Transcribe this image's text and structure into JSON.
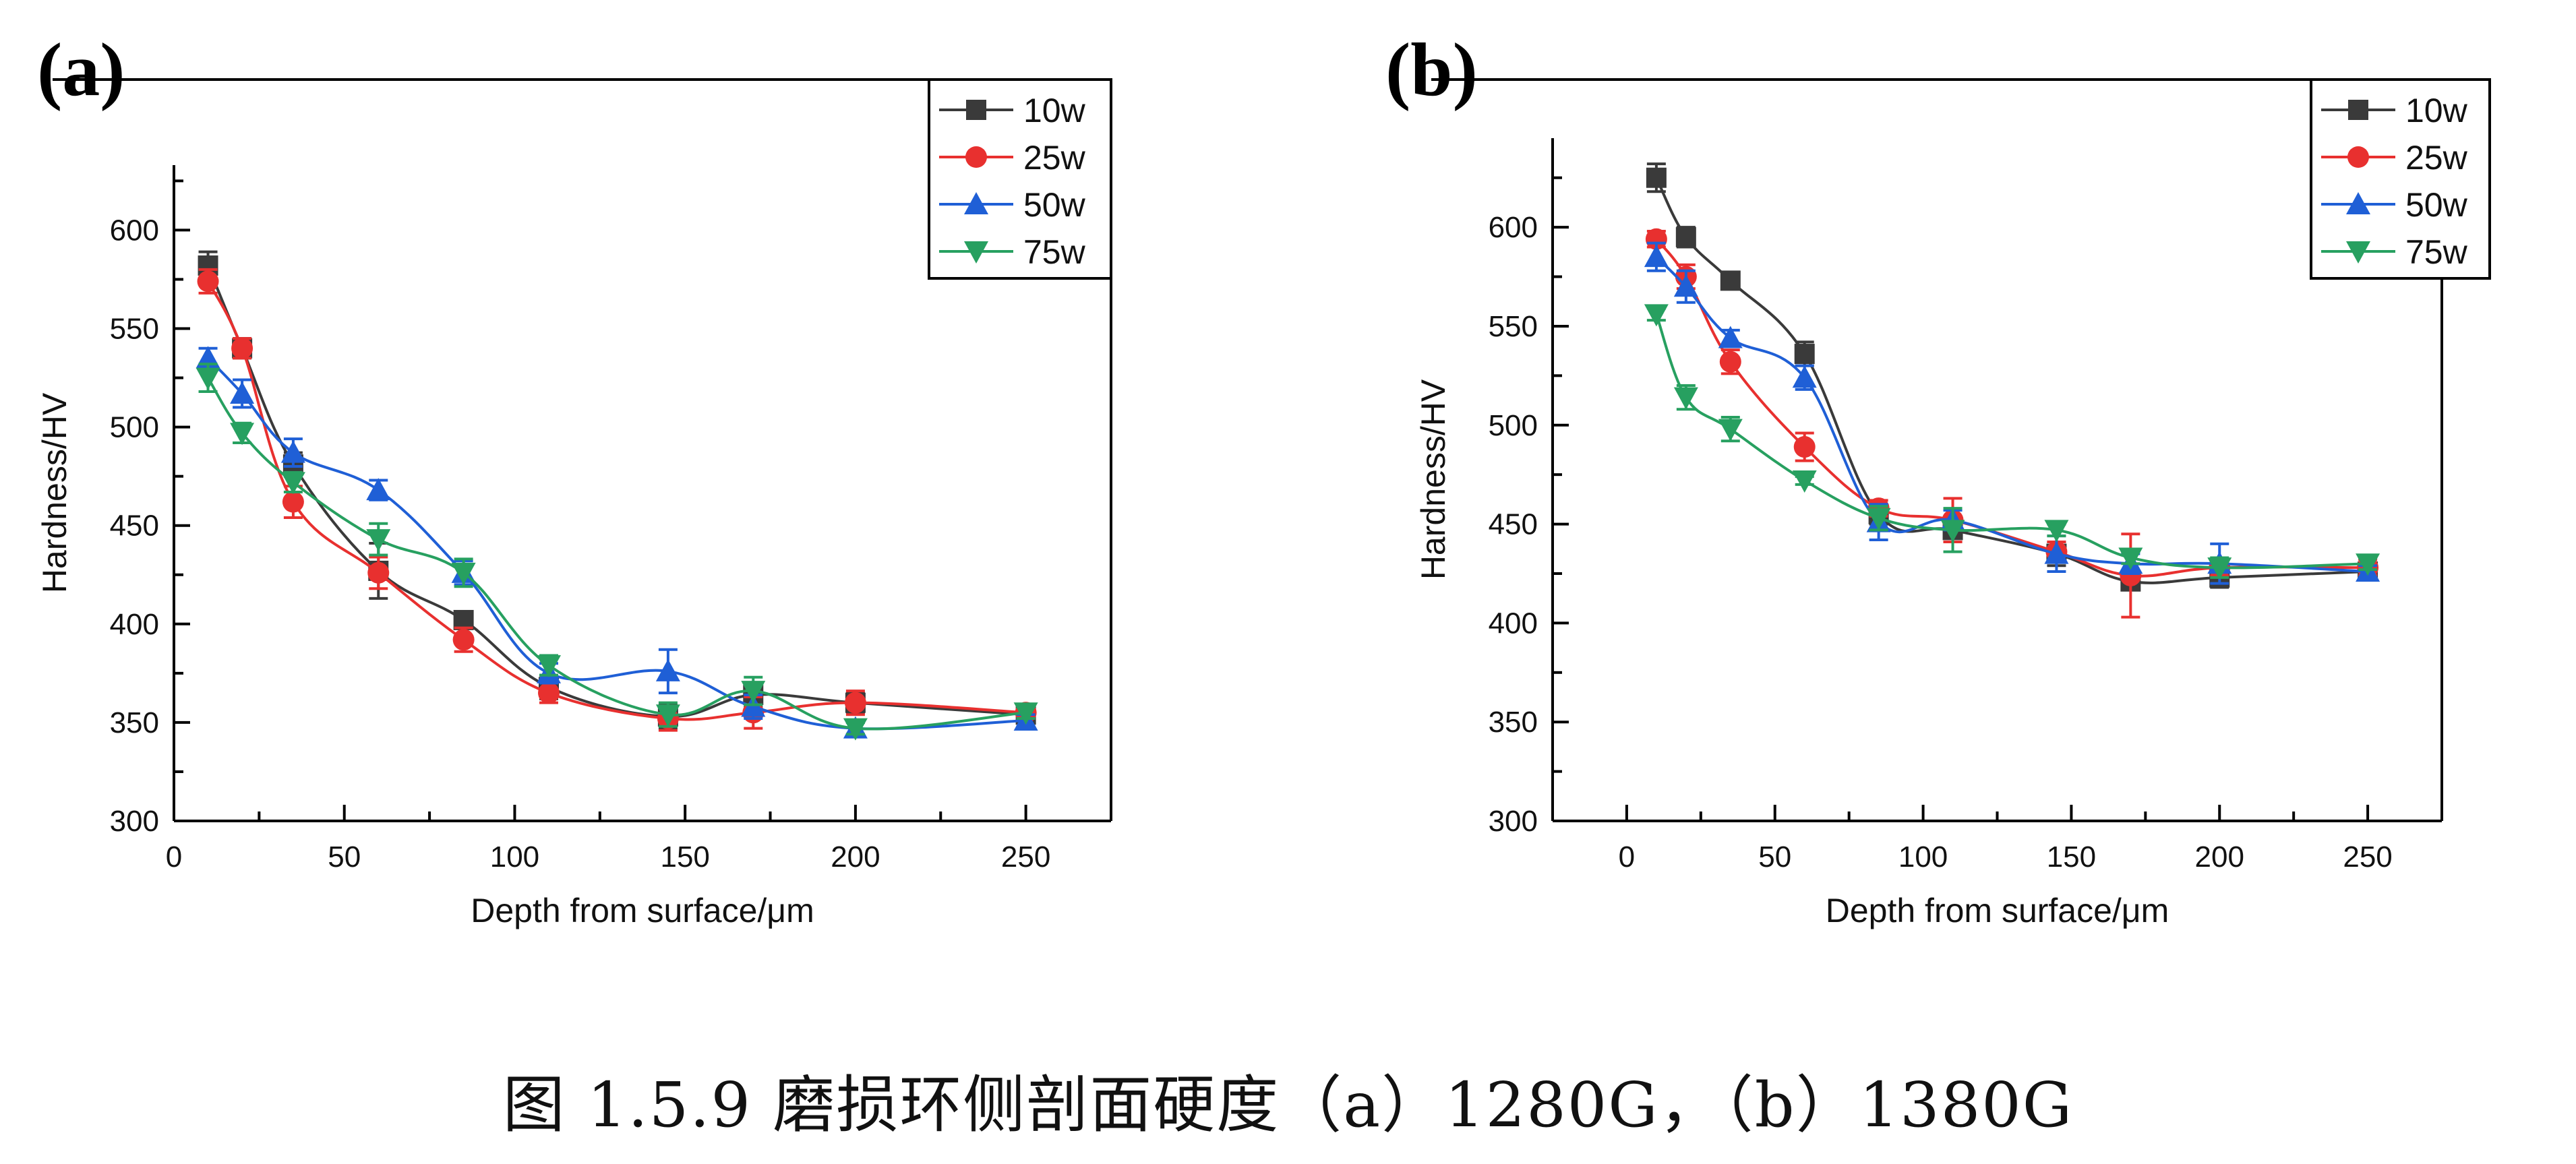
{
  "caption": "图 1.5.9  磨损环侧剖面硬度（a）1280G，（b）1380G",
  "chart_data": [
    {
      "type": "line",
      "panel_label": "(a)",
      "title": "",
      "xlabel": "Depth from surface/μm",
      "ylabel": "Hardness/HV",
      "xlim": [
        0,
        275
      ],
      "ylim": [
        300,
        633
      ],
      "xticks": [
        0,
        50,
        100,
        150,
        200,
        250
      ],
      "yticks": [
        300,
        350,
        400,
        450,
        500,
        550,
        600
      ],
      "grid": false,
      "legend_position": "top-right",
      "x": [
        10,
        20,
        35,
        60,
        85,
        110,
        145,
        170,
        200,
        250
      ],
      "series": [
        {
          "name": "10w",
          "color": "#3a3a3a",
          "marker": "square",
          "values": [
            582,
            540,
            481,
            427,
            402,
            368,
            353,
            364,
            360,
            354
          ],
          "errors": [
            7,
            5,
            6,
            14,
            3,
            6,
            6,
            6,
            5,
            3
          ]
        },
        {
          "name": "25w",
          "color": "#e8302f",
          "marker": "circle",
          "values": [
            574,
            540,
            462,
            426,
            392,
            365,
            352,
            355,
            360,
            355
          ],
          "errors": [
            6,
            5,
            8,
            8,
            6,
            5,
            6,
            8,
            6,
            3
          ]
        },
        {
          "name": "50w",
          "color": "#1f5fd6",
          "marker": "triangle-up",
          "values": [
            535,
            517,
            487,
            468,
            426,
            375,
            376,
            358,
            347,
            351
          ],
          "errors": [
            5,
            7,
            7,
            5,
            6,
            5,
            11,
            6,
            3,
            3
          ]
        },
        {
          "name": "75w",
          "color": "#27a060",
          "marker": "triangle-down",
          "values": [
            525,
            497,
            472,
            443,
            426,
            379,
            354,
            366,
            347,
            355
          ],
          "errors": [
            7,
            5,
            5,
            8,
            7,
            5,
            6,
            7,
            3,
            3
          ]
        }
      ]
    },
    {
      "type": "line",
      "panel_label": "(b)",
      "title": "",
      "xlabel": "Depth from surface/μm",
      "ylabel": "Hardness/HV",
      "xlim": [
        -25,
        275
      ],
      "ylim": [
        300,
        645
      ],
      "xticks": [
        0,
        50,
        100,
        150,
        200,
        250
      ],
      "yticks": [
        300,
        350,
        400,
        450,
        500,
        550,
        600
      ],
      "grid": false,
      "legend_position": "top-right",
      "x": [
        10,
        20,
        35,
        60,
        85,
        110,
        145,
        170,
        200,
        250
      ],
      "series": [
        {
          "name": "10w",
          "color": "#3a3a3a",
          "marker": "square",
          "values": [
            625,
            595,
            573,
            536,
            455,
            447,
            435,
            421,
            423,
            426
          ],
          "errors": [
            7,
            5,
            3,
            6,
            5,
            6,
            6,
            4,
            5,
            3
          ]
        },
        {
          "name": "25w",
          "color": "#e8302f",
          "marker": "circle",
          "values": [
            594,
            575,
            532,
            489,
            458,
            452,
            436,
            424,
            428,
            428
          ],
          "errors": [
            4,
            6,
            6,
            7,
            4,
            11,
            5,
            21,
            4,
            4
          ]
        },
        {
          "name": "50w",
          "color": "#1f5fd6",
          "marker": "triangle-up",
          "values": [
            585,
            570,
            544,
            524,
            451,
            452,
            435,
            430,
            430,
            426
          ],
          "errors": [
            7,
            8,
            4,
            6,
            9,
            5,
            9,
            5,
            10,
            3
          ]
        },
        {
          "name": "75w",
          "color": "#27a060",
          "marker": "triangle-down",
          "values": [
            556,
            514,
            498,
            472,
            453,
            447,
            447,
            433,
            428,
            430
          ],
          "errors": [
            3,
            6,
            6,
            2,
            6,
            11,
            3,
            3,
            5,
            3
          ]
        }
      ]
    }
  ]
}
